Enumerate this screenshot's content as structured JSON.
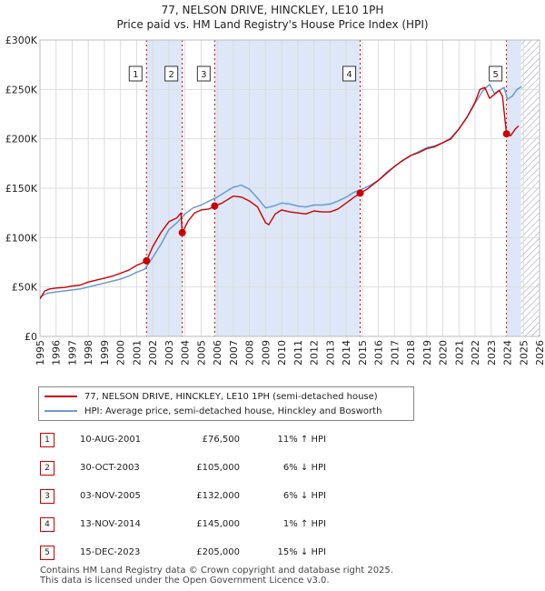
{
  "title_line1": "77, NELSON DRIVE, HINCKLEY, LE10 1PH",
  "title_line2": "Price paid vs. HM Land Registry's House Price Index (HPI)",
  "chart_data": {
    "type": "line",
    "x_range": [
      1995,
      2026
    ],
    "ylim": [
      0,
      300000
    ],
    "y_ticks": [
      0,
      50000,
      100000,
      150000,
      200000,
      250000,
      300000
    ],
    "y_tick_labels": [
      "£0",
      "£50K",
      "£100K",
      "£150K",
      "£200K",
      "£250K",
      "£300K"
    ],
    "x_ticks": [
      1995,
      1996,
      1997,
      1998,
      1999,
      2000,
      2001,
      2002,
      2003,
      2004,
      2005,
      2006,
      2007,
      2008,
      2009,
      2010,
      2011,
      2012,
      2013,
      2014,
      2015,
      2016,
      2017,
      2018,
      2019,
      2020,
      2021,
      2022,
      2023,
      2024,
      2025,
      2026
    ],
    "grid": true,
    "colors": {
      "property": "#cc0000",
      "hpi": "#6a9bd1",
      "shade": "#dde7f7",
      "hatch": "#9999aa",
      "grid": "#dddddd"
    },
    "series": [
      {
        "name": "property",
        "x": [
          1995.0,
          1995.3,
          1995.6,
          1996.0,
          1996.5,
          1997.0,
          1997.5,
          1998.0,
          1998.5,
          1999.0,
          1999.5,
          2000.0,
          2000.5,
          2001.0,
          2001.3,
          2001.61,
          2002.0,
          2002.5,
          2003.0,
          2003.5,
          2003.75,
          2003.83,
          2004.2,
          2004.6,
          2005.0,
          2005.5,
          2005.84,
          2006.3,
          2007.0,
          2007.5,
          2008.0,
          2008.5,
          2009.0,
          2009.2,
          2009.6,
          2010.0,
          2010.5,
          2011.0,
          2011.5,
          2012.0,
          2012.5,
          2013.0,
          2013.5,
          2014.0,
          2014.5,
          2014.87,
          2015.3,
          2016.0,
          2016.5,
          2017.0,
          2017.5,
          2018.0,
          2018.5,
          2019.0,
          2019.5,
          2020.0,
          2020.5,
          2021.0,
          2021.5,
          2022.0,
          2022.3,
          2022.6,
          2022.9,
          2023.2,
          2023.5,
          2023.7,
          2023.95,
          2024.2,
          2024.5,
          2024.7
        ],
        "y": [
          38000,
          46000,
          48000,
          49000,
          49500,
          51000,
          52000,
          55000,
          57000,
          59000,
          61000,
          64000,
          67000,
          72000,
          74000,
          76500,
          91000,
          105000,
          116000,
          120000,
          125000,
          105000,
          117000,
          125000,
          128000,
          129000,
          132000,
          135000,
          142000,
          141000,
          137000,
          131000,
          115000,
          113000,
          124000,
          128000,
          126000,
          125000,
          124000,
          127000,
          126000,
          126000,
          129000,
          135000,
          141000,
          145000,
          149000,
          158000,
          165000,
          172000,
          178000,
          183000,
          186000,
          190000,
          192000,
          196000,
          200000,
          210000,
          222000,
          237000,
          250000,
          252000,
          241000,
          245000,
          249000,
          243000,
          205000,
          203000,
          210000,
          213000
        ]
      },
      {
        "name": "hpi",
        "x": [
          1995.0,
          1995.5,
          1996.0,
          1996.5,
          1997.0,
          1997.5,
          1998.0,
          1998.5,
          1999.0,
          1999.5,
          2000.0,
          2000.5,
          2001.0,
          2001.5,
          2002.0,
          2002.5,
          2003.0,
          2003.5,
          2004.0,
          2004.5,
          2005.0,
          2005.5,
          2006.0,
          2006.5,
          2007.0,
          2007.5,
          2008.0,
          2008.5,
          2009.0,
          2009.5,
          2010.0,
          2010.5,
          2011.0,
          2011.5,
          2012.0,
          2012.5,
          2013.0,
          2013.5,
          2014.0,
          2014.5,
          2015.0,
          2015.5,
          2016.0,
          2016.5,
          2017.0,
          2017.5,
          2018.0,
          2018.5,
          2019.0,
          2019.5,
          2020.0,
          2020.5,
          2021.0,
          2021.5,
          2022.0,
          2022.5,
          2022.9,
          2023.2,
          2023.5,
          2023.8,
          2024.0,
          2024.3,
          2024.6,
          2024.9
        ],
        "y": [
          40000,
          44000,
          45000,
          46000,
          47000,
          48000,
          50000,
          52000,
          54000,
          56000,
          58000,
          61000,
          65000,
          68000,
          80000,
          93000,
          108000,
          115000,
          124000,
          130000,
          133000,
          137000,
          141000,
          146000,
          151000,
          153000,
          149000,
          140000,
          130000,
          132000,
          135000,
          134000,
          132000,
          131000,
          133000,
          133000,
          134000,
          137000,
          141000,
          146000,
          149000,
          153000,
          158000,
          166000,
          172000,
          178000,
          183000,
          187000,
          191000,
          193000,
          196000,
          201000,
          210000,
          222000,
          236000,
          249000,
          255000,
          246000,
          249000,
          252000,
          240000,
          243000,
          250000,
          253000
        ]
      }
    ],
    "sales": [
      {
        "num": "1",
        "x": 2001.61,
        "y": 76500
      },
      {
        "num": "2",
        "x": 2003.83,
        "y": 105000
      },
      {
        "num": "3",
        "x": 2005.84,
        "y": 132000
      },
      {
        "num": "4",
        "x": 2014.87,
        "y": 145000
      },
      {
        "num": "5",
        "x": 2023.95,
        "y": 205000
      }
    ],
    "shaded_ranges": [
      [
        2001.61,
        2003.83
      ],
      [
        2005.84,
        2014.87
      ],
      [
        2023.95,
        2024.85
      ]
    ],
    "hatch_start": 2024.85
  },
  "legend": {
    "property_label": "77, NELSON DRIVE, HINCKLEY, LE10 1PH (semi-detached house)",
    "hpi_label": "HPI: Average price, semi-detached house, Hinckley and Bosworth"
  },
  "sales_table": [
    {
      "num": "1",
      "date": "10-AUG-2001",
      "price": "£76,500",
      "hpi": "11% ↑ HPI"
    },
    {
      "num": "2",
      "date": "30-OCT-2003",
      "price": "£105,000",
      "hpi": "6% ↓ HPI"
    },
    {
      "num": "3",
      "date": "03-NOV-2005",
      "price": "£132,000",
      "hpi": "6% ↓ HPI"
    },
    {
      "num": "4",
      "date": "13-NOV-2014",
      "price": "£145,000",
      "hpi": "1% ↑ HPI"
    },
    {
      "num": "5",
      "date": "15-DEC-2023",
      "price": "£205,000",
      "hpi": "15% ↓ HPI"
    }
  ],
  "footer_line1": "Contains HM Land Registry data © Crown copyright and database right 2025.",
  "footer_line2": "This data is licensed under the Open Government Licence v3.0."
}
